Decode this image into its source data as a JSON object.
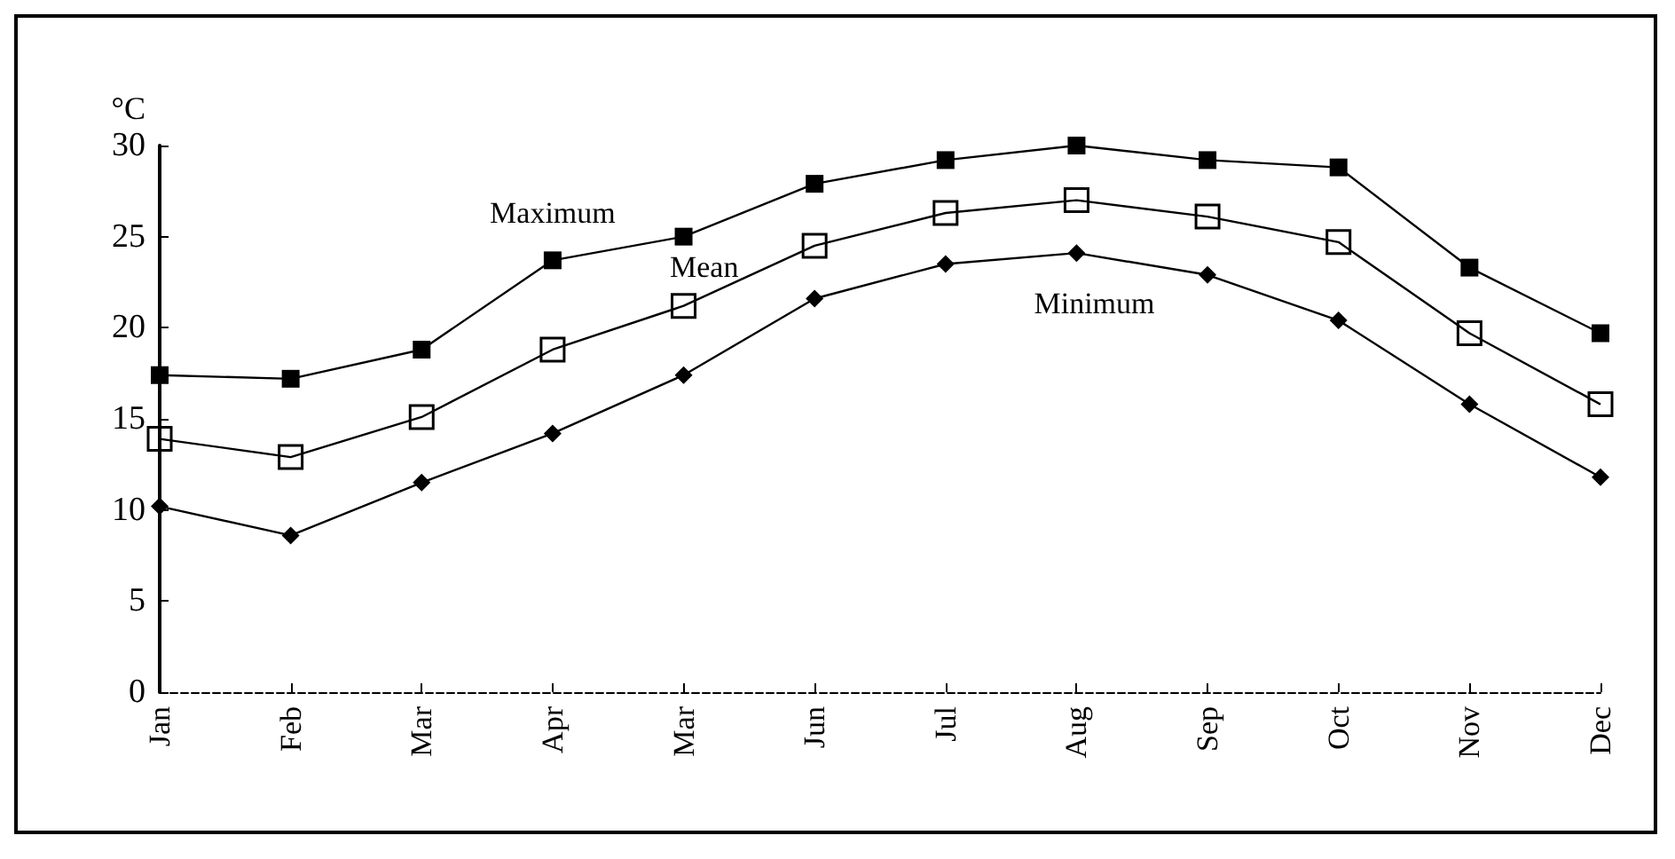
{
  "chart_data": {
    "type": "line",
    "ylabel": "°C",
    "categories": [
      "Jan",
      "Feb",
      "Mar",
      "Apr",
      "Mar",
      "Jun",
      "Jul",
      "Aug",
      "Sep",
      "Oct",
      "Nov",
      "Dec"
    ],
    "series": [
      {
        "name": "Maximum",
        "color": "#000000",
        "marker": "square",
        "values": [
          17.4,
          17.2,
          18.8,
          23.7,
          25.0,
          27.9,
          29.2,
          30.0,
          29.2,
          28.8,
          23.3,
          19.7
        ]
      },
      {
        "name": "Mean",
        "color": "#000000",
        "marker": "square",
        "values": [
          13.9,
          12.9,
          15.1,
          18.8,
          21.2,
          24.5,
          26.3,
          27.0,
          26.1,
          24.7,
          19.7,
          15.8
        ]
      },
      {
        "name": "Minimum",
        "color": "#000000",
        "marker": "diamond",
        "values": [
          10.2,
          8.6,
          11.5,
          14.2,
          17.4,
          21.6,
          23.5,
          24.1,
          22.9,
          20.4,
          15.8,
          11.8
        ]
      }
    ],
    "ylim": [
      0,
      30
    ],
    "yticks": [
      0,
      5,
      10,
      15,
      20,
      25,
      30
    ],
    "grid": false,
    "legend": false,
    "line_style": "solid"
  }
}
